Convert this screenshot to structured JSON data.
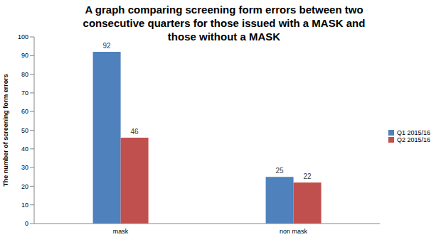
{
  "chart_data": {
    "type": "bar",
    "title": "A graph comparing screening form errors between two consecutive quarters for those issued with a MASK and those without a MASK",
    "y_label": "The number of screening form errors",
    "categories": [
      "mask",
      "non mask"
    ],
    "series": [
      {
        "name": "Q1 2015/16",
        "color": "#4f81bd",
        "values": [
          92,
          25
        ]
      },
      {
        "name": "Q2 2015/16",
        "color": "#c0504d",
        "values": [
          46,
          22
        ]
      }
    ],
    "ylim": [
      0,
      100
    ],
    "yticks": [
      0,
      10,
      20,
      30,
      40,
      50,
      60,
      70,
      80,
      90,
      100
    ],
    "grid": false,
    "legend": "right",
    "data_labels": true
  }
}
